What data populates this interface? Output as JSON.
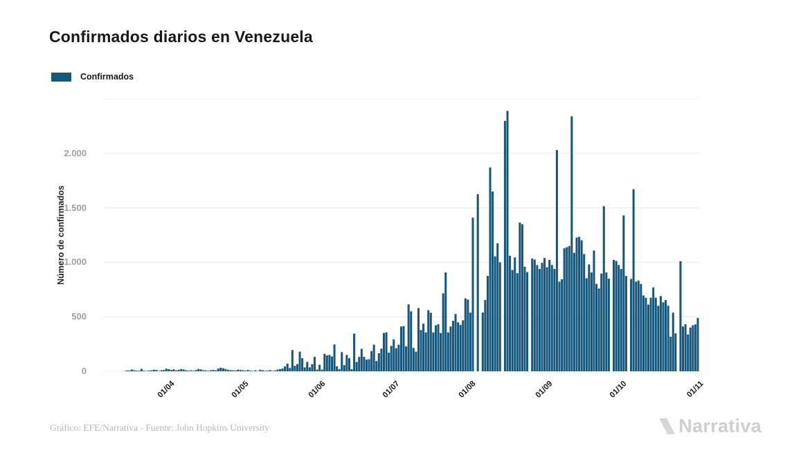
{
  "header": {
    "title": "Confirmados diarios en Venezuela"
  },
  "legend": {
    "items": [
      {
        "label": "Confirmados",
        "color": "#15587D"
      }
    ]
  },
  "chart_data": {
    "type": "bar",
    "title": "Confirmados diarios en Venezuela",
    "series_name": "Confirmados",
    "ylabel": "Número de confirmados",
    "ylim": [
      0,
      2500
    ],
    "grid": true,
    "bar_color": "#15587D",
    "grid_color": "#e9e9e9",
    "ytick_values": [
      0,
      500,
      1000,
      1500,
      2000
    ],
    "ytick_labels": [
      "0",
      "500",
      "1.000",
      "1.500",
      "2.000"
    ],
    "grid_values": [
      0,
      500,
      1000,
      1500,
      2000,
      2500
    ],
    "xtick_labels": [
      "01/04",
      "01/05",
      "01/06",
      "01/07",
      "01/08",
      "01/09",
      "01/10",
      "01/11"
    ],
    "xtick_day_indices": [
      19,
      49,
      80,
      110,
      141,
      172,
      202,
      233
    ],
    "values": [
      2,
      8,
      7,
      16,
      10,
      6,
      6,
      22,
      5,
      4,
      7,
      9,
      15,
      12,
      4,
      10,
      12,
      24,
      20,
      12,
      18,
      9,
      14,
      20,
      17,
      10,
      6,
      9,
      5,
      11,
      21,
      17,
      10,
      8,
      5,
      10,
      13,
      9,
      25,
      33,
      28,
      21,
      14,
      11,
      9,
      8,
      15,
      12,
      10,
      7,
      12,
      6,
      4,
      9,
      3,
      14,
      10,
      5,
      6,
      11,
      4,
      8,
      15,
      20,
      26,
      45,
      70,
      30,
      195,
      50,
      66,
      180,
      120,
      36,
      86,
      36,
      66,
      132,
      16,
      60,
      16,
      160,
      146,
      150,
      136,
      246,
      46,
      20,
      176,
      56,
      150,
      120,
      20,
      346,
      86,
      132,
      206,
      133,
      107,
      111,
      186,
      244,
      94,
      165,
      208,
      351,
      357,
      171,
      233,
      293,
      212,
      244,
      411,
      415,
      229,
      614,
      550,
      214,
      180,
      580,
      379,
      437,
      357,
      561,
      537,
      357,
      422,
      432,
      351,
      715,
      907,
      357,
      411,
      464,
      526,
      449,
      426,
      468,
      669,
      658,
      538,
      1410,
      0,
      1625,
      0,
      540,
      654,
      875,
      1870,
      1650,
      1055,
      1175,
      1000,
      0,
      2298,
      2390,
      1060,
      930,
      1045,
      900,
      1365,
      1350,
      960,
      910,
      0,
      1035,
      1025,
      975,
      940,
      995,
      1040,
      955,
      1023,
      975,
      939,
      2030,
      823,
      844,
      1129,
      1139,
      1150,
      2340,
      1087,
      1228,
      1234,
      1203,
      1076,
      854,
      981,
      907,
      1108,
      802,
      760,
      897,
      1515,
      907,
      850,
      0,
      1023,
      1013,
      975,
      939,
      1430,
      875,
      0,
      848,
      1670,
      823,
      833,
      802,
      696,
      675,
      612,
      675,
      770,
      675,
      601,
      690,
      633,
      654,
      601,
      317,
      538,
      348,
      0,
      1010,
      411,
      432,
      338,
      401,
      422,
      430,
      490
    ]
  },
  "footer": {
    "credit": "Gráfico: EFE/Narrativa - Fuente: John Hopkins University",
    "brand": "Narrativa"
  }
}
